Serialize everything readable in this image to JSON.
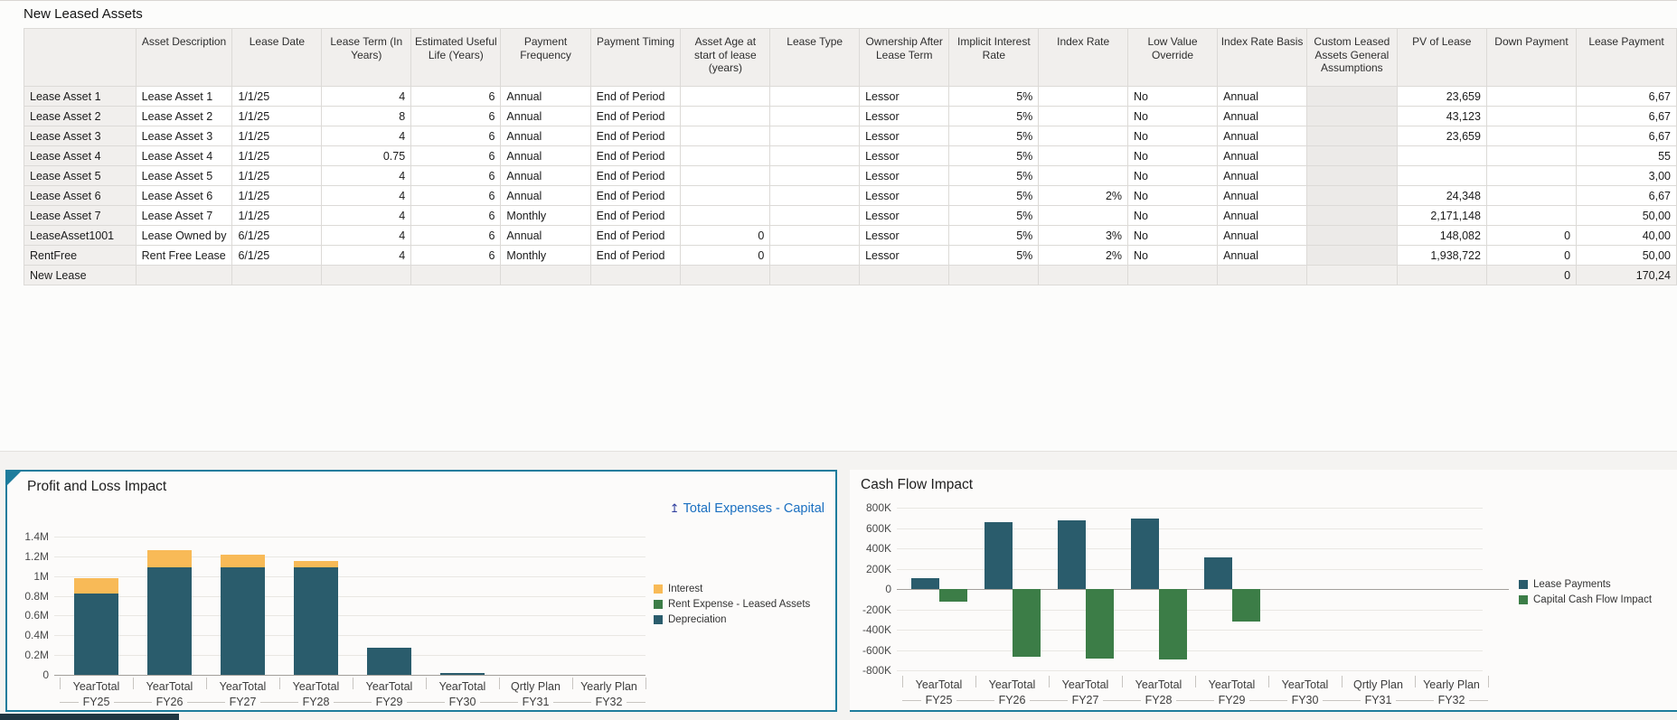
{
  "table": {
    "title": "New Leased Assets",
    "columns": [
      "",
      "Asset Description",
      "Lease Date",
      "Lease Term (In Years)",
      "Estimated Useful Life (Years)",
      "Payment Frequency",
      "Payment Timing",
      "Asset Age at start of lease (years)",
      "Lease Type",
      "Ownership After Lease Term",
      "Implicit Interest Rate",
      "Index Rate",
      "Low Value Override",
      "Index Rate Basis",
      "Custom Leased Assets General Assumptions",
      "PV of Lease",
      "Down Payment",
      "Lease Payment"
    ],
    "rows": [
      {
        "cells": [
          "Lease Asset 1",
          "Lease Asset 1",
          "1/1/25",
          "4",
          "6",
          "Annual",
          "End of Period",
          "",
          "",
          "Lessor",
          "5%",
          "",
          "No",
          "Annual",
          "",
          "23,659",
          "",
          "6,67"
        ],
        "is_new": false
      },
      {
        "cells": [
          "Lease Asset 2",
          "Lease Asset 2",
          "1/1/25",
          "8",
          "6",
          "Annual",
          "End of Period",
          "",
          "",
          "Lessor",
          "5%",
          "",
          "No",
          "Annual",
          "",
          "43,123",
          "",
          "6,67"
        ],
        "is_new": false
      },
      {
        "cells": [
          "Lease Asset 3",
          "Lease Asset 3",
          "1/1/25",
          "4",
          "6",
          "Annual",
          "End of Period",
          "",
          "",
          "Lessor",
          "5%",
          "",
          "No",
          "Annual",
          "",
          "23,659",
          "",
          "6,67"
        ],
        "is_new": false
      },
      {
        "cells": [
          "Lease Asset 4",
          "Lease Asset 4",
          "1/1/25",
          "0.75",
          "6",
          "Annual",
          "End of Period",
          "",
          "",
          "Lessor",
          "5%",
          "",
          "No",
          "Annual",
          "",
          "",
          "",
          "55"
        ],
        "is_new": false
      },
      {
        "cells": [
          "Lease Asset 5",
          "Lease Asset 5",
          "1/1/25",
          "4",
          "6",
          "Annual",
          "End of Period",
          "",
          "",
          "Lessor",
          "5%",
          "",
          "No",
          "Annual",
          "",
          "",
          "",
          "3,00"
        ],
        "is_new": false
      },
      {
        "cells": [
          "Lease Asset 6",
          "Lease Asset 6",
          "1/1/25",
          "4",
          "6",
          "Annual",
          "End of Period",
          "",
          "",
          "Lessor",
          "5%",
          "2%",
          "No",
          "Annual",
          "",
          "24,348",
          "",
          "6,67"
        ],
        "is_new": false
      },
      {
        "cells": [
          "Lease Asset 7",
          "Lease Asset 7",
          "1/1/25",
          "4",
          "6",
          "Monthly",
          "End of Period",
          "",
          "",
          "Lessor",
          "5%",
          "",
          "No",
          "Annual",
          "",
          "2,171,148",
          "",
          "50,00"
        ],
        "is_new": false
      },
      {
        "cells": [
          "LeaseAsset1001",
          "Lease Owned by",
          "6/1/25",
          "4",
          "6",
          "Annual",
          "End of Period",
          "0",
          "",
          "Lessor",
          "5%",
          "3%",
          "No",
          "Annual",
          "",
          "148,082",
          "0",
          "40,00"
        ],
        "is_new": false
      },
      {
        "cells": [
          "RentFree",
          "Rent Free Lease",
          "6/1/25",
          "4",
          "6",
          "Monthly",
          "End of Period",
          "0",
          "",
          "Lessor",
          "5%",
          "2%",
          "No",
          "Annual",
          "",
          "1,938,722",
          "0",
          "50,00"
        ],
        "is_new": false
      },
      {
        "cells": [
          "New Lease",
          "",
          "",
          "",
          "",
          "",
          "",
          "",
          "",
          "",
          "",
          "",
          "",
          "",
          "",
          "",
          "0",
          "170,24"
        ],
        "is_new": true
      }
    ]
  },
  "chart_data": [
    {
      "type": "bar",
      "stacked": true,
      "title": "Profit and Loss Impact",
      "link": {
        "label": "Total Expenses - Capital",
        "icon": "up-arrow"
      },
      "categories": [
        {
          "period": "YearTotal",
          "year": "FY25"
        },
        {
          "period": "YearTotal",
          "year": "FY26"
        },
        {
          "period": "YearTotal",
          "year": "FY27"
        },
        {
          "period": "YearTotal",
          "year": "FY28"
        },
        {
          "period": "YearTotal",
          "year": "FY29"
        },
        {
          "period": "YearTotal",
          "year": "FY30"
        },
        {
          "period": "Qrtly Plan",
          "year": "FY31"
        },
        {
          "period": "Yearly Plan",
          "year": "FY32"
        }
      ],
      "series": [
        {
          "name": "Interest",
          "color": "#f8ba57",
          "values": [
            160000,
            170000,
            130000,
            60000,
            0,
            0,
            0,
            0
          ]
        },
        {
          "name": "Rent Expense - Leased Assets",
          "color": "#3c7d47",
          "values": [
            0,
            0,
            0,
            0,
            0,
            0,
            0,
            0
          ]
        },
        {
          "name": "Depreciation",
          "color": "#2a5c6c",
          "values": [
            820000,
            1090000,
            1090000,
            1090000,
            270000,
            12000,
            0,
            0
          ]
        }
      ],
      "ylim": [
        0,
        1400000
      ],
      "ytick": 200000,
      "ytick_labels": [
        "0",
        "0.2M",
        "0.4M",
        "0.6M",
        "0.8M",
        "1M",
        "1.2M",
        "1.4M"
      ],
      "grid": true,
      "legend_position": "right"
    },
    {
      "type": "bar",
      "stacked": false,
      "title": "Cash Flow Impact",
      "categories": [
        {
          "period": "YearTotal",
          "year": "FY25"
        },
        {
          "period": "YearTotal",
          "year": "FY26"
        },
        {
          "period": "YearTotal",
          "year": "FY27"
        },
        {
          "period": "YearTotal",
          "year": "FY28"
        },
        {
          "period": "YearTotal",
          "year": "FY29"
        },
        {
          "period": "YearTotal",
          "year": "FY30"
        },
        {
          "period": "Qrtly Plan",
          "year": "FY31"
        },
        {
          "period": "Yearly Plan",
          "year": "FY32"
        }
      ],
      "series": [
        {
          "name": "Lease Payments",
          "color": "#2a5c6c",
          "values": [
            110000,
            660000,
            675000,
            690000,
            310000,
            0,
            0,
            0
          ]
        },
        {
          "name": "Capital Cash Flow Impact",
          "color": "#3c7d47",
          "values": [
            -120000,
            -665000,
            -680000,
            -690000,
            -320000,
            0,
            0,
            0
          ]
        }
      ],
      "ylim": [
        -800000,
        800000
      ],
      "ytick": 200000,
      "ytick_labels": [
        "-800K",
        "-600K",
        "-400K",
        "-200K",
        "0",
        "200K",
        "400K",
        "600K",
        "800K"
      ],
      "grid": true,
      "legend_position": "right"
    }
  ]
}
